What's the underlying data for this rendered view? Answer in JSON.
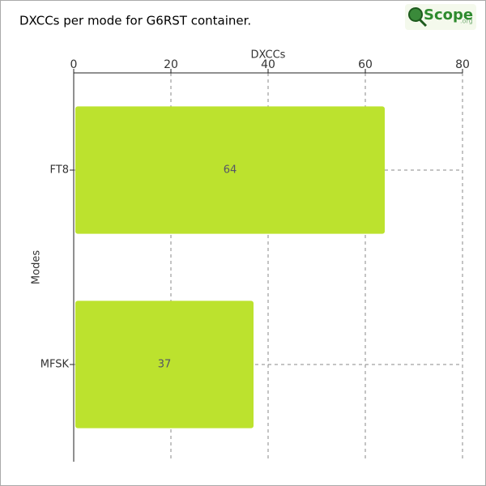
{
  "chart_data": {
    "type": "bar",
    "orientation": "horizontal",
    "title": "DXCCs per mode for G6RST container.",
    "x_label": "DXCCs",
    "y_label": "Modes",
    "categories": [
      "FT8",
      "MFSK"
    ],
    "values": [
      64,
      37
    ],
    "color": "#bce22e",
    "xlim": [
      0,
      80
    ],
    "xticks": [
      0,
      20,
      40,
      60,
      80
    ],
    "grid": true
  },
  "logo": {
    "name": "Scope",
    "suffix": ".org"
  }
}
